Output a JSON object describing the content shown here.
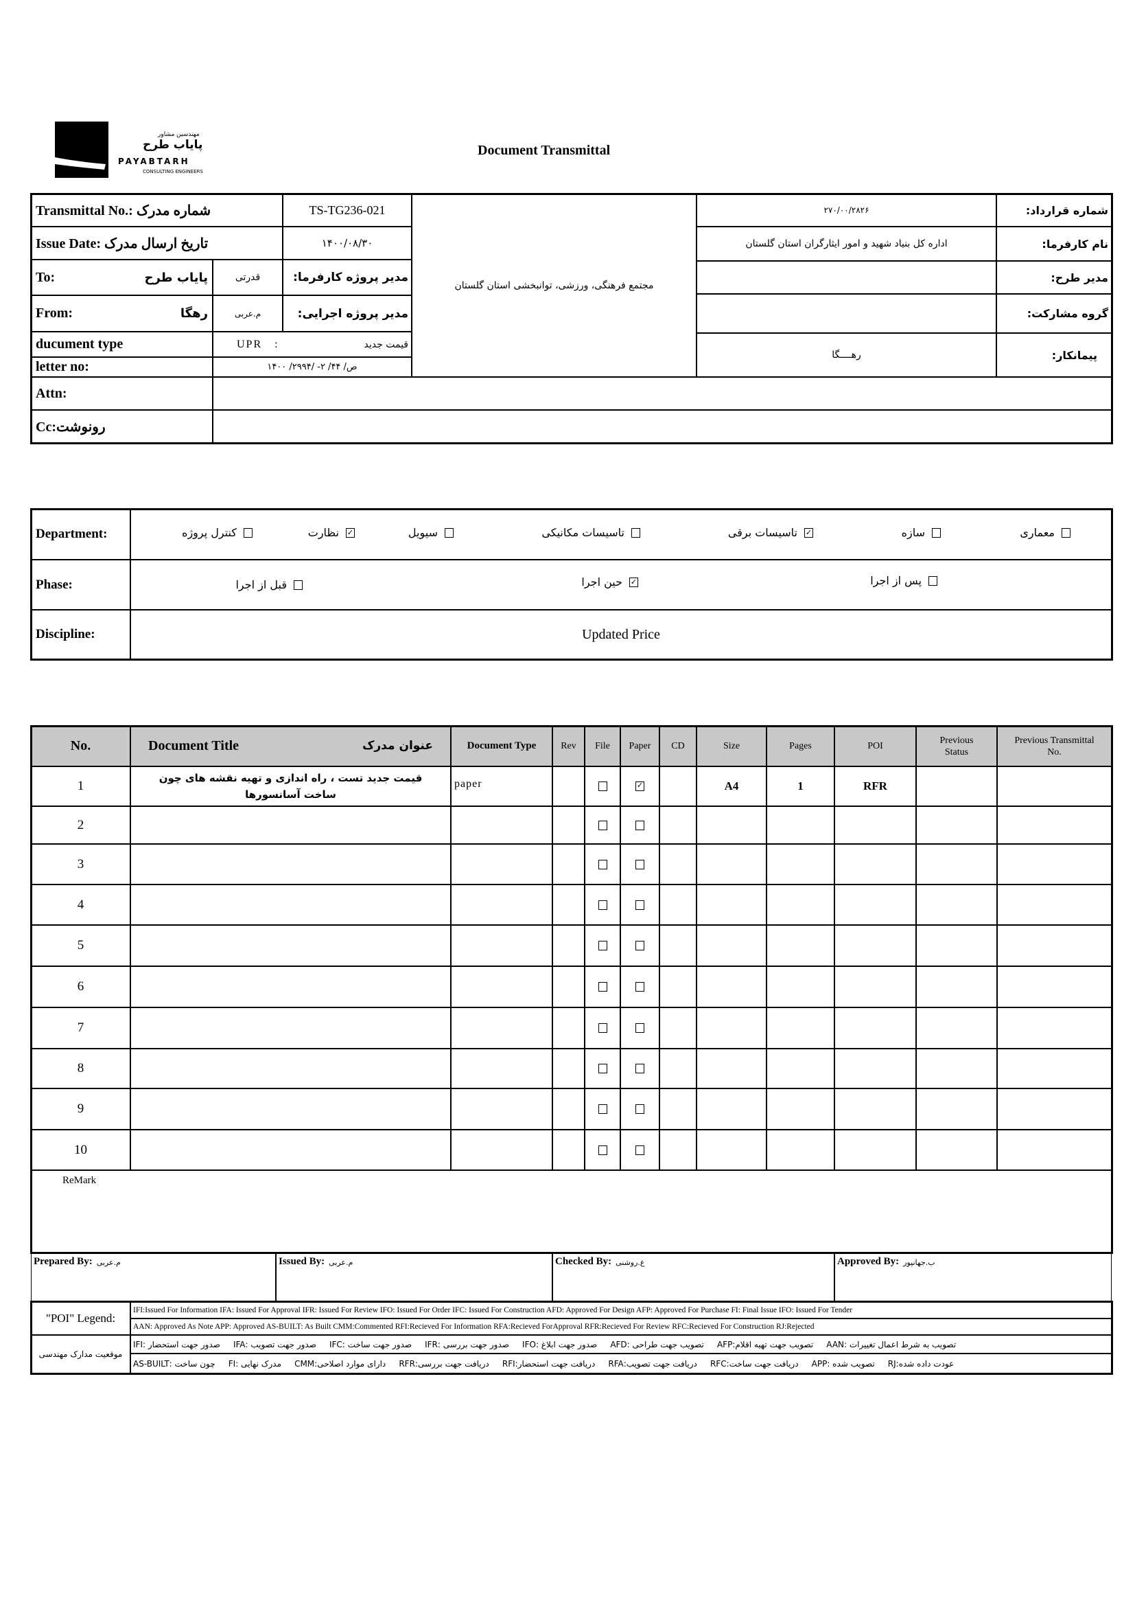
{
  "logo": {
    "persian_small": "مهندسین مشاور",
    "persian_name": "پایاب طرح",
    "latin": "PAYABTARH",
    "tagline": "CONSULTING ENGINEERS"
  },
  "title": "Document Transmittal",
  "info": {
    "transmittal_label": "Transmittal No.: شماره مدرک",
    "transmittal_no": "TS-TG236-021",
    "issue_label": "Issue Date: تاریخ ارسال مدرک",
    "issue_date": "۱۴۰۰/۰۸/۳۰",
    "to_label": "To:",
    "to_value": "پایاب طرح",
    "client_pm_value": "قدرتی",
    "client_pm_label": "مدیر پروژه کارفرما:",
    "from_label": "From:",
    "from_value": "رهگا",
    "exec_pm_value": "م.عربی",
    "exec_pm_label": "مدیر پروژه اجرایی:",
    "doctype_label": "ducument type",
    "doctype_code": "UPR   :",
    "doctype_value": "قیمت جدید",
    "letter_label": "letter no:",
    "letter_no": "۱۴۰۰ /ص/ ۴۴/ ۲- /۲۹۹۴",
    "project": "مجتمع فرهنگی، ورزشی، توانبخشی استان گلستان",
    "contract_label": "شماره قرارداد:",
    "contract_no": "۲۷۰/۰۰/۲۸۲۶",
    "client_label": "نام کارفرما:",
    "client": "اداره کل بنیاد شهید و امور ایثارگران استان گلستان",
    "plan_manager_label": "مدیر طرح:",
    "partner_label": "گروه مشارکت:",
    "contractor_label": "پیمانکار:",
    "contractor": "رهــــگا",
    "attn_label": "Attn:",
    "cc_label": "Cc:رونوشت"
  },
  "classification": {
    "department_label": "Department:",
    "departments": [
      {
        "label": "معماری",
        "checked": false
      },
      {
        "label": "سازه",
        "checked": false
      },
      {
        "label": "تاسیسات برقی",
        "checked": true
      },
      {
        "label": "تاسیسات مکانیکی",
        "checked": false
      },
      {
        "label": "سیویل",
        "checked": false
      },
      {
        "label": "نظارت",
        "checked": true
      },
      {
        "label": "کنترل پروژه",
        "checked": false
      }
    ],
    "phase_label": "Phase:",
    "phases": [
      {
        "label": "پس از اجرا",
        "checked": false
      },
      {
        "label": "حین اجرا",
        "checked": true
      },
      {
        "label": "قبل از اجرا",
        "checked": false
      }
    ],
    "discipline_label": "Discipline:",
    "discipline": "Updated Price"
  },
  "table": {
    "headers": {
      "no": "No.",
      "title_en": "Document Title",
      "title_fa": "عنوان مدرک",
      "doc_type": "Document Type",
      "rev": "Rev",
      "file": "File",
      "paper": "Paper",
      "cd": "CD",
      "size": "Size",
      "pages": "Pages",
      "poi": "POI",
      "prev_status": "Previous Status",
      "prev_transmittal": "Previous Transmittal No."
    },
    "rows": [
      {
        "no": "1",
        "title": "قیمت جدید تست ، راه اندازی و تهیه نقشه های چون ساخت آسانسورها",
        "doc_type": "paper",
        "rev": "",
        "file": false,
        "paper": true,
        "cd": "",
        "size": "A4",
        "pages": "1",
        "poi": "RFR",
        "prev_status": "",
        "prev_transmittal": ""
      },
      {
        "no": "2",
        "file": false,
        "paper": false
      },
      {
        "no": "3",
        "file": false,
        "paper": false
      },
      {
        "no": "4",
        "file": false,
        "paper": false
      },
      {
        "no": "5",
        "file": false,
        "paper": false
      },
      {
        "no": "6",
        "file": false,
        "paper": false
      },
      {
        "no": "7",
        "file": false,
        "paper": false
      },
      {
        "no": "8",
        "file": false,
        "paper": false
      },
      {
        "no": "9",
        "file": false,
        "paper": false
      },
      {
        "no": "10",
        "file": false,
        "paper": false
      }
    ],
    "remark_label": "ReMark"
  },
  "signatures": [
    {
      "label": "Prepared By:",
      "name": "م.عربی"
    },
    {
      "label": "Issued By:",
      "name": "م.عربی"
    },
    {
      "label": "Checked By:",
      "name": "ع.روشنی"
    },
    {
      "label": "Approved By:",
      "name": "ب.جهانپور"
    }
  ],
  "legend": {
    "poi_label": "\"POI\" Legend:",
    "line1": "IFI:Issued For Information  IFA: Issued For Approval  IFR: Issued For Review  IFO: Issued For Order  IFC: Issued For Construction AFD: Approved For Design AFP: Approved For Purchase  FI: Final Issue  IFO: Issued For Tender",
    "line2": "AAN: Approved As Note  APP: Approved  AS-BUILT: As Built CMM:Commented  RFI:Recieved For Information  RFA:Recieved ForApproval  RFR:Recieved For Review  RFC:Recieved For Construction  RJ:Rejected",
    "fa_label": "موقعیت مدارک مهندسی",
    "line3": "تصویب به شرط اعمال تغییرات :AAN     تصویب جهت تهیه اقلام:AFP     تصویب جهت طراحی :AFD     صدور جهت ابلاغ :IFO     صدور جهت بررسی :IFR     صدور جهت ساخت :IFC     صدور جهت تصویب :IFA     صدور جهت استحضار :IFI",
    "line4": "عودت داده شده:RJ     تصویب شده :APP     دریافت جهت ساخت:RFC     دریافت جهت تصویب:RFA     دریافت جهت استحضار:RFI     دریافت جهت بررسی:RFR     دارای موارد اصلاحی:CMM     مدرک نهایی :FI     چون ساخت :AS-BUILT"
  }
}
